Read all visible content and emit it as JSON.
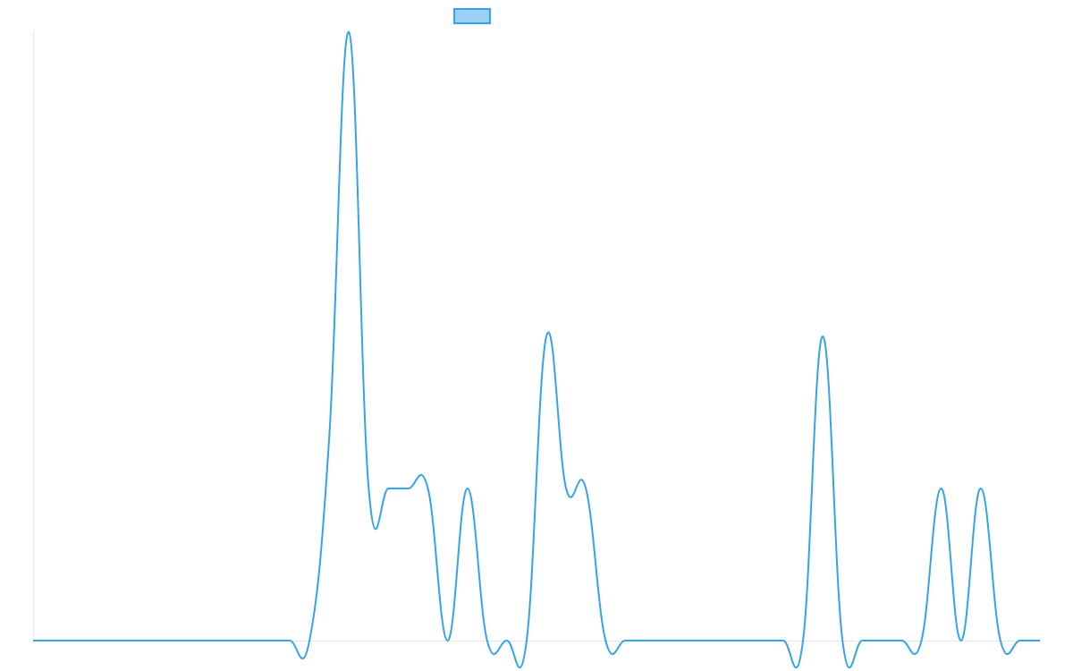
{
  "chart_data": {
    "type": "line",
    "title": "",
    "xlabel": "",
    "ylabel": "",
    "legend": {
      "placement": "top-center",
      "series_label": ""
    },
    "grid": false,
    "smooth": true,
    "colors": {
      "line": "#36A2EB",
      "legend_fill": "#9AD0F5",
      "axis": "#e6e6e6"
    },
    "xlim": [
      0,
      51
    ],
    "ylim": [
      0,
      3
    ],
    "series": [
      {
        "name": "",
        "x": [
          0,
          1,
          2,
          3,
          4,
          5,
          6,
          7,
          8,
          9,
          10,
          11,
          12,
          13,
          14,
          15,
          16,
          17,
          18,
          19,
          20,
          21,
          22,
          23,
          24,
          25,
          26,
          27,
          28,
          29,
          30,
          31,
          32,
          33,
          34,
          35,
          36,
          37,
          38,
          39,
          40,
          41,
          42,
          43,
          44,
          45,
          46,
          47,
          48,
          49,
          50,
          51
        ],
        "y": [
          0,
          0,
          0,
          0,
          0,
          0,
          0,
          0,
          0,
          0,
          0,
          0,
          0,
          0,
          0,
          1,
          3,
          0.75,
          0.75,
          0.75,
          0.75,
          0,
          0.75,
          0,
          0,
          0,
          1.5,
          0.75,
          0.75,
          0,
          0,
          0,
          0,
          0,
          0,
          0,
          0,
          0,
          0,
          0,
          1.5,
          0,
          0,
          0,
          0,
          0,
          0.75,
          0,
          0.75,
          0,
          0,
          0
        ]
      }
    ]
  }
}
